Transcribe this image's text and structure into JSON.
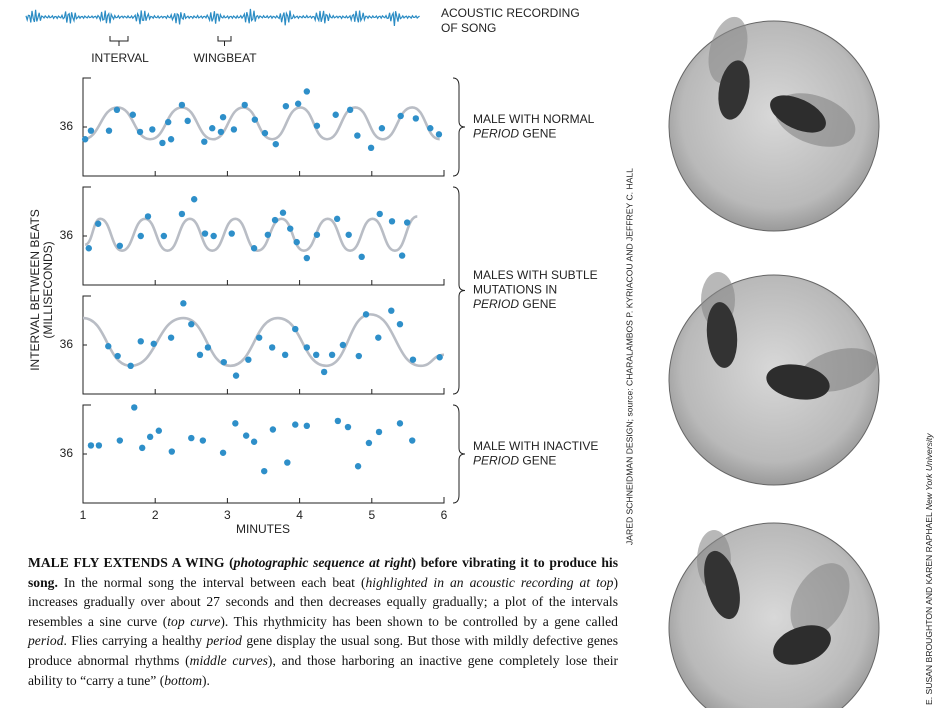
{
  "header": {
    "recording_label": [
      "ACOUSTIC RECORDING",
      "OF SONG"
    ],
    "interval_label": "INTERVAL",
    "wingbeat_label": "WINGBEAT"
  },
  "y_axis_label": [
    "INTERVAL BETWEEN BEATS",
    "(MILLISECONDS)"
  ],
  "x_axis_label": "MINUTES",
  "chart_data": [
    {
      "type": "scatter",
      "xlim": [
        1,
        6
      ],
      "ylim": [
        32,
        40
      ],
      "yticks": [
        36
      ],
      "color": "#2e8fc9",
      "curve_color": "#b9bdc5",
      "x": [
        1.03,
        1.11,
        1.36,
        1.47,
        1.69,
        1.79,
        1.96,
        2.1,
        2.18,
        2.22,
        2.37,
        2.45,
        2.68,
        2.79,
        2.91,
        2.94,
        3.09,
        3.24,
        3.38,
        3.52,
        3.67,
        3.81,
        3.98,
        4.1,
        4.24,
        4.5,
        4.7,
        4.8,
        4.99,
        5.14,
        5.4,
        5.61,
        5.81,
        5.93
      ],
      "values": [
        35.0,
        35.7,
        35.7,
        37.4,
        37.0,
        35.6,
        35.8,
        34.7,
        36.4,
        35.0,
        37.8,
        36.5,
        34.8,
        35.9,
        35.6,
        36.8,
        35.8,
        37.8,
        36.6,
        35.5,
        34.6,
        37.7,
        37.9,
        38.9,
        36.1,
        37.0,
        37.4,
        35.3,
        34.3,
        35.9,
        36.9,
        36.7,
        35.9,
        35.4
      ],
      "curve": {
        "x": [
          1.0,
          1.48,
          1.93,
          2.37,
          2.8,
          3.22,
          3.62,
          4.01,
          4.38,
          4.77,
          5.15,
          5.56,
          5.94
        ],
        "values": [
          35.0,
          37.6,
          35.0,
          37.6,
          35.0,
          37.6,
          35.0,
          37.6,
          35.0,
          37.6,
          35.0,
          37.6,
          35.0
        ]
      }
    },
    {
      "type": "scatter",
      "xlim": [
        1,
        6
      ],
      "ylim": [
        32,
        40
      ],
      "yticks": [
        36
      ],
      "color": "#2e8fc9",
      "curve_color": "#b9bdc5",
      "x": [
        1.08,
        1.21,
        1.51,
        1.8,
        1.9,
        2.12,
        2.37,
        2.54,
        2.69,
        2.81,
        3.06,
        3.37,
        3.56,
        3.66,
        3.77,
        3.87,
        3.96,
        4.1,
        4.24,
        4.52,
        4.68,
        4.86,
        5.11,
        5.28,
        5.42,
        5.49
      ],
      "values": [
        35.0,
        37.0,
        35.2,
        36.0,
        37.6,
        36.0,
        37.8,
        39.0,
        36.2,
        36.0,
        36.2,
        35.0,
        36.1,
        37.3,
        37.9,
        36.6,
        35.5,
        34.2,
        36.1,
        37.4,
        36.1,
        34.3,
        37.8,
        37.2,
        34.4,
        37.1
      ],
      "curve": {
        "x": [
          1.03,
          1.24,
          1.54,
          1.86,
          2.17,
          2.48,
          2.79,
          3.11,
          3.42,
          3.75,
          4.06,
          4.39,
          4.7,
          5.01,
          5.32,
          5.63
        ],
        "values": [
          35.3,
          37.4,
          34.8,
          37.4,
          34.8,
          37.4,
          34.8,
          37.4,
          34.8,
          37.4,
          34.8,
          37.4,
          34.8,
          37.4,
          34.8,
          37.6
        ]
      }
    },
    {
      "type": "scatter",
      "xlim": [
        1,
        6
      ],
      "ylim": [
        32,
        40
      ],
      "yticks": [
        36
      ],
      "color": "#2e8fc9",
      "curve_color": "#b9bdc5",
      "x": [
        1.35,
        1.48,
        1.66,
        1.8,
        1.98,
        2.22,
        2.39,
        2.5,
        2.62,
        2.73,
        2.95,
        3.12,
        3.29,
        3.44,
        3.62,
        3.8,
        3.94,
        4.1,
        4.23,
        4.34,
        4.45,
        4.6,
        4.82,
        4.92,
        5.09,
        5.27,
        5.39,
        5.57,
        5.94
      ],
      "values": [
        35.9,
        35.1,
        34.3,
        36.3,
        36.1,
        36.6,
        39.4,
        37.7,
        35.2,
        35.8,
        34.6,
        33.5,
        34.8,
        36.6,
        35.8,
        35.2,
        37.3,
        35.8,
        35.2,
        33.8,
        35.2,
        36.0,
        35.1,
        38.5,
        36.6,
        38.8,
        37.7,
        34.8,
        35.0
      ],
      "curve": {
        "x": [
          1.0,
          1.66,
          2.39,
          3.04,
          3.7,
          4.37,
          4.98,
          5.68,
          6.0
        ],
        "values": [
          38.2,
          34.3,
          38.2,
          34.3,
          38.2,
          34.3,
          38.5,
          34.3,
          35.2
        ]
      }
    },
    {
      "type": "scatter",
      "xlim": [
        1,
        6
      ],
      "ylim": [
        32,
        40
      ],
      "yticks": [
        36
      ],
      "xticks": [
        1,
        2,
        3,
        4,
        5,
        6
      ],
      "color": "#2e8fc9",
      "x": [
        1.11,
        1.22,
        1.51,
        1.71,
        1.82,
        1.93,
        2.05,
        2.23,
        2.5,
        2.66,
        2.94,
        3.11,
        3.26,
        3.37,
        3.51,
        3.63,
        3.83,
        3.94,
        4.1,
        4.53,
        4.67,
        4.81,
        4.96,
        5.1,
        5.39,
        5.56
      ],
      "values": [
        36.7,
        36.7,
        37.1,
        39.8,
        36.5,
        37.4,
        37.9,
        36.2,
        37.3,
        37.1,
        36.1,
        38.5,
        37.5,
        37.0,
        34.6,
        38.0,
        35.3,
        38.4,
        38.3,
        38.7,
        38.2,
        35.0,
        36.9,
        37.8,
        38.5,
        37.1
      ]
    }
  ],
  "annotations": [
    {
      "lines": [
        "MALE WITH NORMAL"
      ],
      "gene_italic": "PERIOD",
      "gene": "GENE"
    },
    {
      "lines": [
        "MALES WITH SUBTLE",
        "MUTATIONS IN"
      ],
      "gene_italic": "PERIOD",
      "gene": "GENE"
    },
    {
      "lines": [
        "MALE WITH INACTIVE"
      ],
      "gene_italic": "PERIOD",
      "gene": "GENE"
    }
  ],
  "caption": [
    {
      "text": "MALE FLY EXTENDS A WING (",
      "style": "bold"
    },
    {
      "text": "photographic sequence at right",
      "style": "bold italic"
    },
    {
      "text": ") before vibrating it to produce his song.",
      "style": "bold"
    },
    {
      "text": " In the normal song the interval between each beat (",
      "style": "normal"
    },
    {
      "text": "highlighted in an acoustic recording at top",
      "style": "italic"
    },
    {
      "text": ") increases gradually over about 27 seconds and then decreases equally gradually; a plot of the intervals resembles a sine curve (",
      "style": "normal"
    },
    {
      "text": "top curve",
      "style": "italic"
    },
    {
      "text": "). This rhythmicity has been shown to be controlled by a gene called ",
      "style": "normal"
    },
    {
      "text": "period",
      "style": "italic"
    },
    {
      "text": ". Flies carrying a healthy ",
      "style": "normal"
    },
    {
      "text": "period",
      "style": "italic"
    },
    {
      "text": " gene display the usual song. But those with mildly defective genes produce abnormal rhythms (",
      "style": "normal"
    },
    {
      "text": "middle curves",
      "style": "italic"
    },
    {
      "text": "), and those harboring an inactive gene completely lose their ability to “carry a tune” (",
      "style": "normal"
    },
    {
      "text": "bottom",
      "style": "italic"
    },
    {
      "text": ").",
      "style": "normal"
    }
  ],
  "credits": {
    "graphic": "JARED SCHNEIDMAN DESIGN; source: CHARALAMBOS P. KYRIACOU AND JEFFREY C. HALL",
    "photo": "E. SUSAN BROUGHTON AND KAREN RAPHAEL",
    "photo_affiliation": "New York University"
  }
}
